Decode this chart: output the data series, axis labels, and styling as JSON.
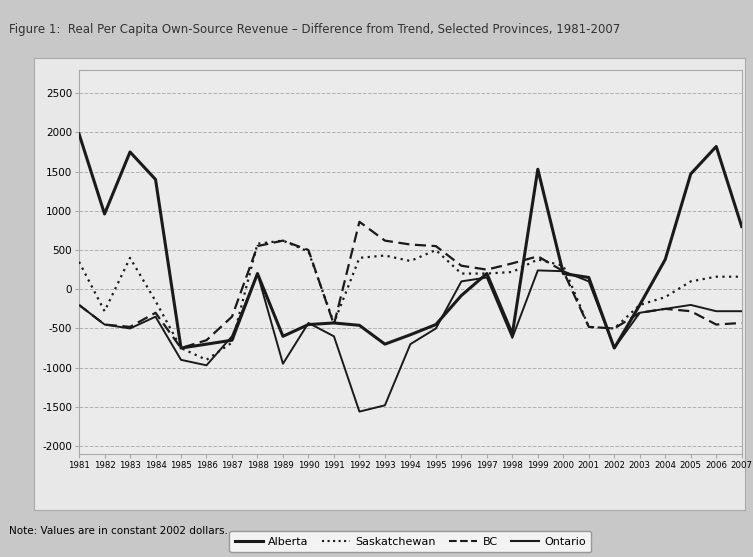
{
  "title": "Figure 1:  Real Per Capita Own-Source Revenue – Difference from Trend, Selected Provinces, 1981-2007",
  "years": [
    1981,
    1982,
    1983,
    1984,
    1985,
    1986,
    1987,
    1988,
    1989,
    1990,
    1991,
    1992,
    1993,
    1994,
    1995,
    1996,
    1997,
    1998,
    1999,
    2000,
    2001,
    2002,
    2003,
    2004,
    2005,
    2006,
    2007
  ],
  "alberta": [
    1980,
    960,
    1750,
    1400,
    -750,
    -700,
    -650,
    200,
    -600,
    -450,
    -430,
    -460,
    -700,
    -580,
    -450,
    -80,
    200,
    -570,
    1530,
    200,
    150,
    -750,
    -200,
    380,
    1470,
    1820,
    800
  ],
  "saskatchewan": [
    350,
    -280,
    400,
    -150,
    -750,
    -900,
    -680,
    580,
    620,
    480,
    -430,
    400,
    430,
    360,
    500,
    200,
    200,
    220,
    380,
    300,
    -480,
    -500,
    -200,
    -100,
    100,
    160,
    160
  ],
  "bc": [
    -200,
    -450,
    -480,
    -300,
    -750,
    -650,
    -350,
    550,
    620,
    500,
    -450,
    860,
    620,
    570,
    550,
    300,
    250,
    330,
    420,
    230,
    -480,
    -500,
    -300,
    -250,
    -280,
    -450,
    -430
  ],
  "ontario": [
    -200,
    -450,
    -500,
    -350,
    -900,
    -970,
    -600,
    200,
    -950,
    -430,
    -600,
    -1560,
    -1480,
    -700,
    -500,
    100,
    150,
    -620,
    240,
    230,
    100,
    -750,
    -300,
    -250,
    -200,
    -280,
    -280
  ],
  "note": "Note: Values are in constant 2002 dollars.",
  "ylim": [
    -2100,
    2800
  ],
  "yticks": [
    -2000,
    -1500,
    -1000,
    -500,
    0,
    500,
    1000,
    1500,
    2000,
    2500
  ],
  "title_color": "#333333",
  "title_bg": "#c8c8c8",
  "outer_bg": "#c8c8c8",
  "inner_bg": "#e8e8e8",
  "plot_bg": "#ebebeb",
  "grid_color": "#aaaaaa",
  "line_color": "#1a1a1a",
  "border_color": "#aaaaaa"
}
